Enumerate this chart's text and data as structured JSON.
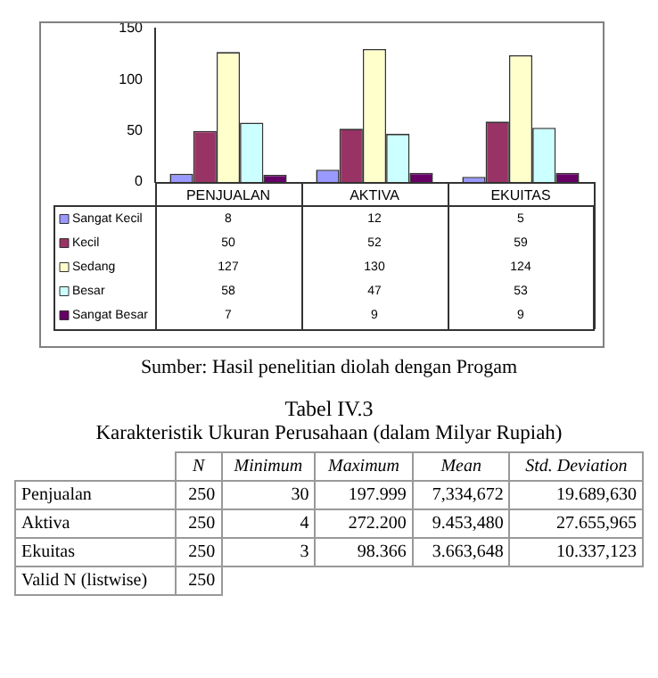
{
  "chart_data": [
    {
      "type": "bar",
      "categories": [
        "PENJUALAN",
        "AKTIVA",
        "EKUITAS"
      ],
      "series": [
        {
          "name": "Sangat Kecil",
          "color": "#9999ff",
          "values": [
            8,
            12,
            5
          ]
        },
        {
          "name": "Kecil",
          "color": "#993366",
          "values": [
            50,
            52,
            59
          ]
        },
        {
          "name": "Sedang",
          "color": "#ffffcc",
          "values": [
            127,
            130,
            124
          ]
        },
        {
          "name": "Besar",
          "color": "#ccffff",
          "values": [
            58,
            47,
            53
          ]
        },
        {
          "name": "Sangat Besar",
          "color": "#660066",
          "values": [
            7,
            9,
            9
          ]
        }
      ],
      "ylim": [
        0,
        150
      ],
      "yticks": [
        0,
        50,
        100,
        150
      ],
      "grid": false,
      "legend": "bottom",
      "data_labels": true,
      "annotations": [
        "Sumber: Hasil penelitian diolah dengan Progam"
      ]
    },
    {
      "type": "other",
      "title": "Tabel IV.3",
      "subtitle": "Karakteristik Ukuran Perusahaan (dalam Milyar Rupiah)",
      "categories": [
        "N",
        "Minimum",
        "Maximum",
        "Mean",
        "Std. Deviation"
      ],
      "y_categories": [
        "Penjualan",
        "Aktiva",
        "Ekuitas",
        "Valid N (listwise)"
      ],
      "cell_labels": [
        [
          "250",
          "30",
          "197.999",
          "7,334,672",
          "19.689,630"
        ],
        [
          "250",
          "4",
          "272.200",
          "9.453,480",
          "27.655,965"
        ],
        [
          "250",
          "3",
          "98.366",
          "3.663,648",
          "10.337,123"
        ],
        [
          "250",
          null,
          null,
          null,
          null
        ]
      ]
    }
  ]
}
